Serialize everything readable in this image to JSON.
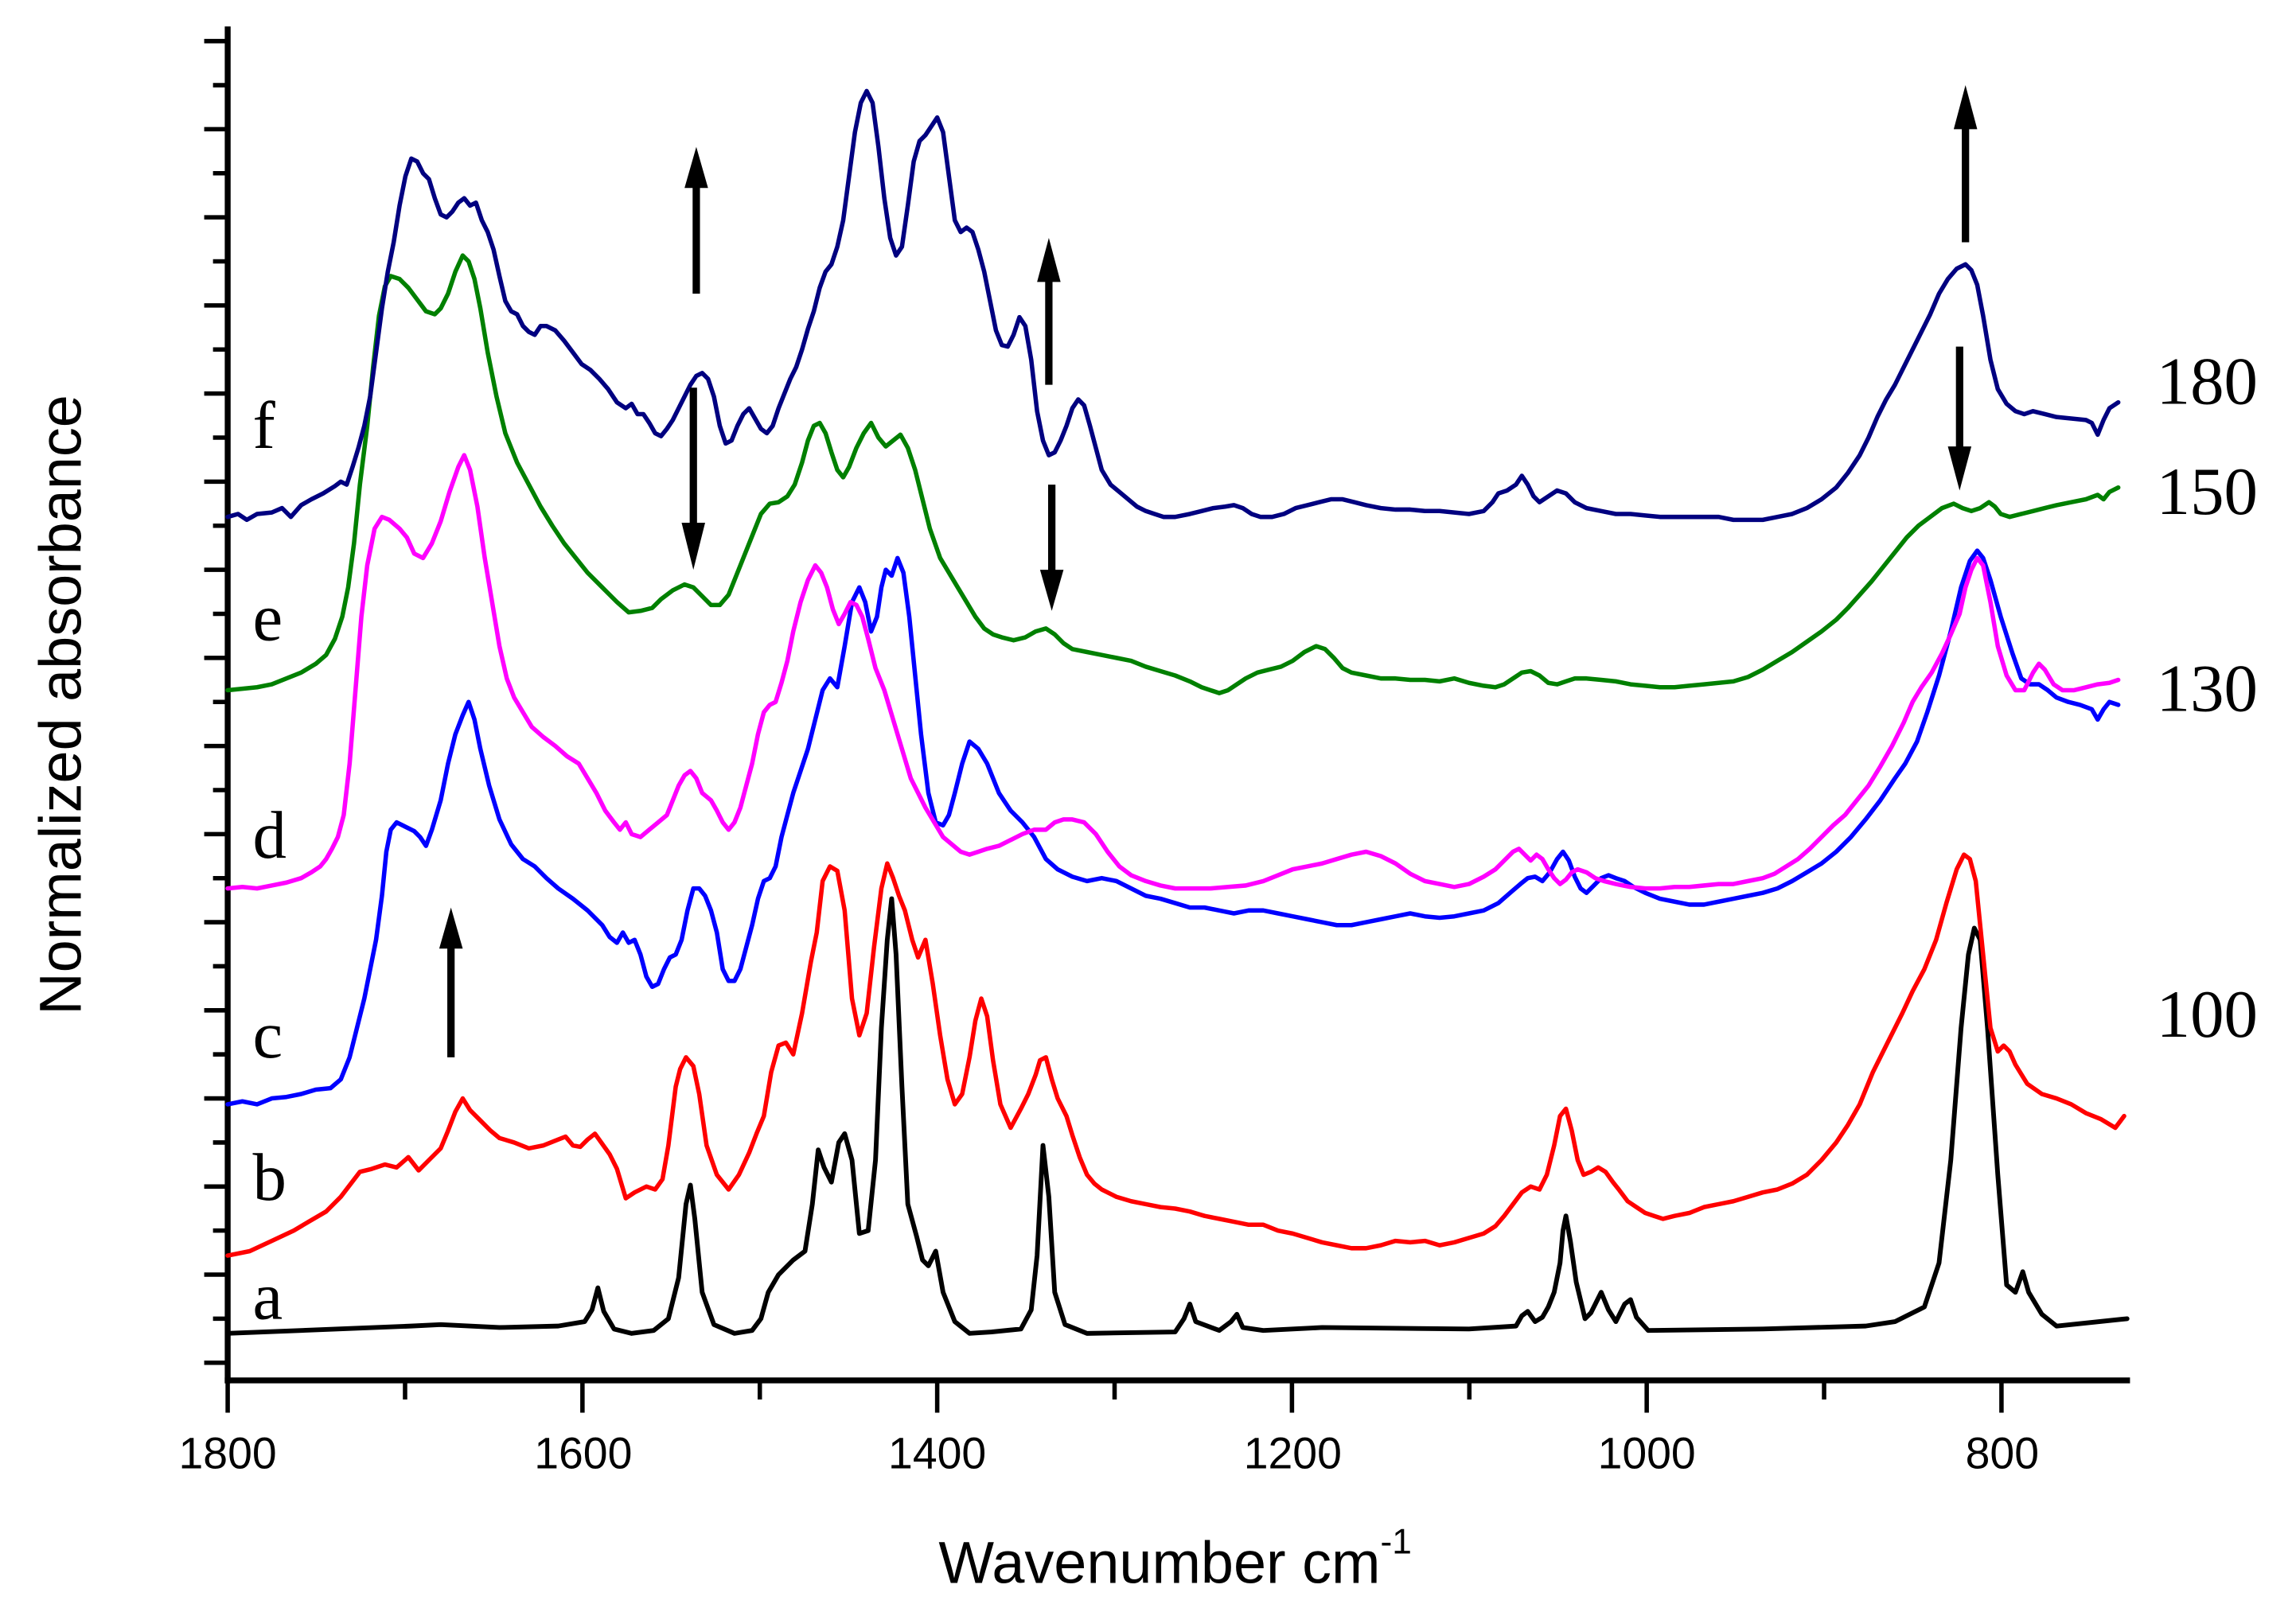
{
  "chart_data": {
    "type": "line",
    "title": "",
    "xlabel": "Wavenumber cm-1",
    "xlabel_main": "Wavenumber cm",
    "xlabel_sup": "-1",
    "ylabel": "Normalized absorbance",
    "xlim": [
      1800,
      650
    ],
    "x_reversed": true,
    "x_ticks": [
      "1800",
      "1600",
      "1400",
      "1200",
      "1000",
      "800"
    ],
    "y_ticks_labeled": false,
    "grid": false,
    "legend": "curve letters at left, temperature labels at right",
    "series": [
      {
        "id": "a",
        "label": "a",
        "temperature": "",
        "color": "#000000",
        "peaks_cm-1": [
          1578,
          1518,
          1440,
          1430,
          1405,
          1380,
          1304,
          1217,
          1190,
          1020,
          998,
          975,
          745,
          718
        ]
      },
      {
        "id": "b",
        "label": "b",
        "temperature": "",
        "color": "#ff0000",
        "peaks_cm-1": [
          1700,
          1658,
          1518,
          1465,
          1435,
          1408,
          1398,
          1345,
          1308,
          1020,
          745
        ]
      },
      {
        "id": "c",
        "label": "c",
        "temperature": "100",
        "color": "#0000ff",
        "peaks_cm-1": [
          1698,
          1655,
          1518,
          1465,
          1435,
          1400,
          1345,
          1300,
          1130,
          1020,
          745
        ]
      },
      {
        "id": "d",
        "label": "d",
        "temperature": "130",
        "color": "#ff00ff",
        "peaks_cm-1": [
          1700,
          1655,
          1518,
          1435,
          1400,
          1380,
          1300,
          1265,
          1130,
          1020,
          735,
          700
        ]
      },
      {
        "id": "e",
        "label": "e",
        "temperature": "150",
        "color": "#008000",
        "peaks_cm-1": [
          1700,
          1658,
          1518,
          1435,
          1395,
          1380,
          1305,
          1130,
          1030,
          745,
          735
        ]
      },
      {
        "id": "f",
        "label": "f",
        "temperature": "180",
        "color": "#000080",
        "peaks_cm-1": [
          1688,
          1658,
          1518,
          1435,
          1400,
          1345,
          1300,
          1240,
          1130,
          1020,
          990,
          745
        ]
      }
    ],
    "annotations": [
      {
        "type": "arrow-up",
        "x_cm-1": 1665,
        "near": "curve c"
      },
      {
        "type": "arrow-up",
        "x_cm-1": 1518,
        "near": "curve f"
      },
      {
        "type": "arrow-down",
        "x_cm-1": 1518,
        "near": "curve e"
      },
      {
        "type": "arrow-up",
        "x_cm-1": 1300,
        "near": "curve f"
      },
      {
        "type": "arrow-down",
        "x_cm-1": 1300,
        "near": "curve e"
      },
      {
        "type": "arrow-up",
        "x_cm-1": 745,
        "near": "curve f"
      },
      {
        "type": "arrow-down",
        "x_cm-1": 745,
        "near": "curve e"
      }
    ],
    "right_labels": [
      "180",
      "150",
      "130",
      "100"
    ]
  },
  "labels": {
    "curve_letters": [
      "f",
      "e",
      "d",
      "c",
      "b",
      "a"
    ],
    "temps": [
      "180",
      "150",
      "130",
      "100"
    ]
  }
}
